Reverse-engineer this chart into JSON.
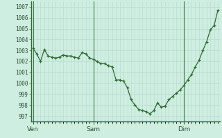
{
  "y": [
    1003.2,
    1002.7,
    1002.0,
    1003.1,
    1002.5,
    1002.4,
    1002.3,
    1002.4,
    1002.6,
    1002.5,
    1002.5,
    1002.4,
    1002.3,
    1002.8,
    1002.7,
    1002.3,
    1002.2,
    1002.0,
    1001.8,
    1001.8,
    1001.6,
    1001.5,
    1000.3,
    1000.3,
    1000.2,
    999.6,
    998.5,
    998.0,
    997.6,
    997.5,
    997.4,
    997.2,
    997.5,
    998.2,
    997.8,
    997.9,
    998.5,
    998.8,
    999.1,
    999.4,
    999.8,
    1000.3,
    1000.8,
    1001.5,
    1002.1,
    1003.0,
    1003.8,
    1004.9,
    1005.3,
    1006.7
  ],
  "xtick_positions": [
    0,
    16,
    40
  ],
  "xtick_labels": [
    "Ven",
    "Sam",
    "Dim"
  ],
  "vline_positions": [
    0,
    16,
    40
  ],
  "ytick_min": 997,
  "ytick_max": 1007,
  "line_color": "#2d6a2d",
  "marker_color": "#2d6a2d",
  "bg_color": "#ceeee2",
  "grid_color": "#b8d8cc",
  "xlim": [
    -0.5,
    49.5
  ],
  "ylim": [
    996.5,
    1007.5
  ]
}
